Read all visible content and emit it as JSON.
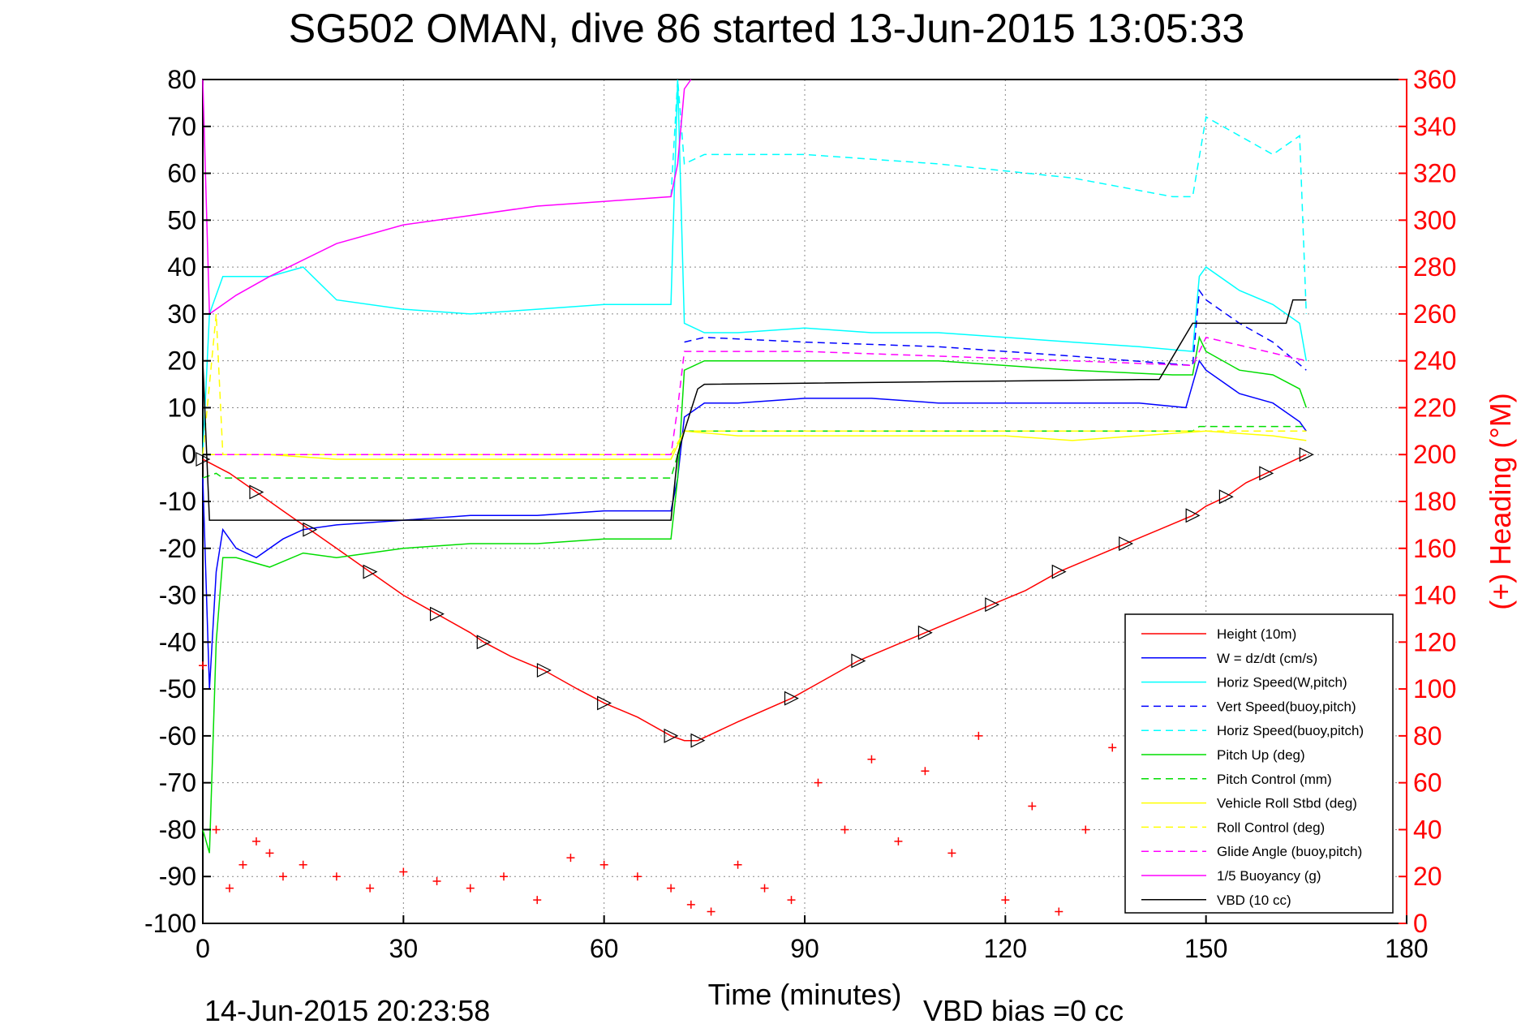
{
  "chart_data": {
    "type": "line",
    "title": "SG502 OMAN, dive 86 started 13-Jun-2015 13:05:33",
    "xlabel": "Time (minutes)",
    "ylabel_right": "(+) Heading (°M)",
    "xlim": [
      0,
      180
    ],
    "ylim_left": [
      -100,
      80
    ],
    "ylim_right": [
      0,
      360
    ],
    "x_ticks": [
      "0",
      "30",
      "60",
      "90",
      "120",
      "150",
      "180"
    ],
    "y_ticks_left": [
      "80",
      "70",
      "60",
      "50",
      "40",
      "30",
      "20",
      "10",
      "0",
      "-10",
      "-20",
      "-30",
      "-40",
      "-50",
      "-60",
      "-70",
      "-80",
      "-90",
      "-100"
    ],
    "y_ticks_right": [
      "360",
      "340",
      "320",
      "300",
      "280",
      "260",
      "240",
      "220",
      "200",
      "180",
      "160",
      "140",
      "120",
      "100",
      "80",
      "60",
      "40",
      "20",
      "0"
    ],
    "grid": true,
    "legend_position": "lower-right",
    "footer_left": "14-Jun-2015 20:23:58",
    "footer_right": "VBD bias =0 cc",
    "series": [
      {
        "name": "Height (10m)",
        "color": "#ff0000",
        "style": "solid",
        "x": [
          0,
          4,
          8,
          12,
          16,
          20,
          25,
          30,
          35,
          40,
          42,
          46,
          51,
          56,
          60,
          65,
          70,
          72,
          74,
          80,
          88,
          93,
          98,
          103,
          108,
          113,
          118,
          123,
          128,
          133,
          138,
          143,
          148,
          150,
          153,
          156,
          159,
          162,
          165
        ],
        "y": [
          -1,
          -4,
          -8,
          -12,
          -16,
          -20,
          -25,
          -30,
          -34,
          -38,
          -40,
          -43,
          -46,
          -50,
          -53,
          -56,
          -60,
          -61,
          -61,
          -57,
          -52,
          -48,
          -44,
          -41,
          -38,
          -35,
          -32,
          -29,
          -25,
          -22,
          -19,
          -16,
          -13,
          -11,
          -9,
          -6,
          -4,
          -2,
          0
        ]
      },
      {
        "name": "W = dz/dt (cm/s)",
        "color": "#0000ff",
        "style": "solid",
        "x": [
          0,
          1,
          2,
          3,
          5,
          8,
          12,
          15,
          20,
          30,
          40,
          50,
          60,
          70,
          71,
          72,
          75,
          80,
          90,
          100,
          110,
          120,
          130,
          140,
          147,
          149,
          150,
          155,
          160,
          164,
          165
        ],
        "y": [
          -5,
          -50,
          -25,
          -16,
          -20,
          -22,
          -18,
          -16,
          -15,
          -14,
          -13,
          -13,
          -12,
          -12,
          -5,
          8,
          11,
          11,
          12,
          12,
          11,
          11,
          11,
          11,
          10,
          20,
          18,
          13,
          11,
          7,
          5
        ]
      },
      {
        "name": "Horiz Speed(W,pitch)",
        "color": "#00ffff",
        "style": "solid",
        "x": [
          0,
          1,
          3,
          10,
          15,
          20,
          30,
          40,
          50,
          60,
          70,
          71,
          72,
          75,
          80,
          90,
          100,
          110,
          120,
          130,
          140,
          148,
          149,
          150,
          155,
          160,
          164,
          165
        ],
        "y": [
          0,
          30,
          38,
          38,
          40,
          33,
          31,
          30,
          31,
          32,
          32,
          80,
          28,
          26,
          26,
          27,
          26,
          26,
          25,
          24,
          23,
          22,
          38,
          40,
          35,
          32,
          28,
          20
        ]
      },
      {
        "name": "Vert Speed(buoy,pitch)",
        "color": "#0000ff",
        "style": "dashed",
        "x": [
          72,
          75,
          90,
          110,
          130,
          148,
          149,
          150,
          155,
          160,
          165
        ],
        "y": [
          24,
          25,
          24,
          23,
          21,
          19,
          35,
          33,
          28,
          24,
          18
        ]
      },
      {
        "name": "Horiz Speed(buoy,pitch)",
        "color": "#00ffff",
        "style": "dashed",
        "x": [
          70,
          71,
          72,
          75,
          90,
          110,
          130,
          145,
          148,
          150,
          155,
          160,
          164,
          165
        ],
        "y": [
          55,
          80,
          62,
          64,
          64,
          62,
          59,
          55,
          55,
          72,
          68,
          64,
          68,
          30
        ]
      },
      {
        "name": "Pitch Up (deg)",
        "color": "#00dd00",
        "style": "solid",
        "x": [
          0,
          1,
          2,
          3,
          5,
          10,
          15,
          20,
          30,
          40,
          50,
          60,
          70,
          71,
          72,
          75,
          90,
          110,
          130,
          145,
          148,
          149,
          150,
          155,
          160,
          164,
          165
        ],
        "y": [
          -80,
          -85,
          -40,
          -22,
          -22,
          -24,
          -21,
          -22,
          -20,
          -19,
          -19,
          -18,
          -18,
          -5,
          18,
          20,
          20,
          20,
          18,
          17,
          17,
          25,
          22,
          18,
          17,
          14,
          10
        ]
      },
      {
        "name": "Pitch Control (mm)",
        "color": "#00dd00",
        "style": "dashed",
        "x": [
          0,
          2,
          3,
          70,
          71,
          72,
          148,
          149,
          165
        ],
        "y": [
          -5,
          -4,
          -5,
          -5,
          0,
          5,
          5,
          6,
          6
        ]
      },
      {
        "name": "Vehicle Roll Stbd (deg)",
        "color": "#ffff00",
        "style": "solid",
        "x": [
          0,
          3,
          10,
          20,
          30,
          40,
          50,
          60,
          70,
          72,
          80,
          90,
          100,
          110,
          120,
          130,
          140,
          150,
          160,
          165
        ],
        "y": [
          0,
          0,
          0,
          -1,
          -1,
          -1,
          -1,
          -1,
          -1,
          5,
          4,
          4,
          4,
          4,
          4,
          3,
          4,
          5,
          4,
          3
        ]
      },
      {
        "name": "Roll Control (deg)",
        "color": "#ffff00",
        "style": "dashed",
        "x": [
          0,
          2,
          3,
          10,
          70,
          72,
          80,
          165
        ],
        "y": [
          0,
          30,
          0,
          0,
          0,
          5,
          5,
          5
        ]
      },
      {
        "name": "Glide Angle (buoy,pitch)",
        "color": "#ff00ff",
        "style": "dashed",
        "x": [
          0,
          70,
          71,
          72,
          90,
          110,
          130,
          148,
          150,
          165
        ],
        "y": [
          0,
          0,
          10,
          22,
          22,
          21,
          20,
          19,
          25,
          20
        ]
      },
      {
        "name": "1/5 Buoyancy (g)",
        "color": "#ff00ff",
        "style": "solid",
        "x": [
          0,
          1,
          5,
          10,
          20,
          30,
          40,
          50,
          60,
          70,
          71,
          72,
          73
        ],
        "y": [
          80,
          30,
          34,
          38,
          45,
          49,
          51,
          53,
          54,
          55,
          62,
          78,
          80
        ]
      },
      {
        "name": "VBD (10 cc)",
        "color": "#000000",
        "style": "solid",
        "x": [
          0,
          1,
          2,
          70,
          71,
          72,
          74,
          75,
          140,
          142,
          143,
          148,
          149,
          162,
          163,
          165
        ],
        "y": [
          20,
          -14,
          -14,
          -14,
          0,
          5,
          14,
          15,
          16,
          16,
          16,
          28,
          28,
          28,
          33,
          33
        ]
      },
      {
        "name": "Heading",
        "color": "#ff0000",
        "style": "plus",
        "axis": "right",
        "x": [
          0,
          2,
          4,
          6,
          8,
          10,
          12,
          15,
          20,
          25,
          30,
          35,
          40,
          45,
          50,
          55,
          60,
          65,
          70,
          73,
          76,
          80,
          84,
          88,
          92,
          96,
          100,
          104,
          108,
          112,
          116,
          120,
          124,
          128,
          132,
          136,
          140,
          144,
          148,
          152,
          156,
          160,
          164
        ],
        "y": [
          110,
          40,
          15,
          25,
          35,
          30,
          20,
          25,
          20,
          15,
          22,
          18,
          15,
          20,
          10,
          28,
          25,
          20,
          15,
          8,
          5,
          25,
          15,
          10,
          60,
          40,
          70,
          35,
          65,
          30,
          80,
          10,
          50,
          5,
          40,
          75,
          25,
          70,
          20,
          55,
          10,
          45,
          30
        ]
      }
    ]
  }
}
